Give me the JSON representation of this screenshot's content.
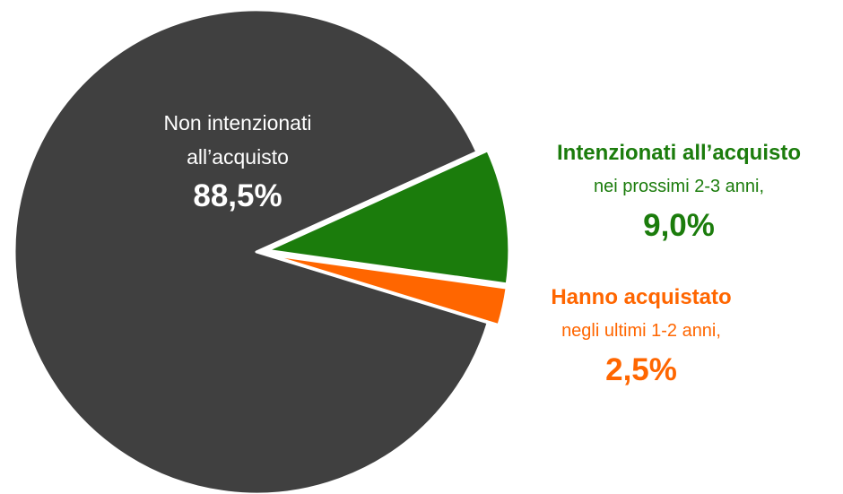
{
  "chart_data": {
    "type": "pie",
    "categories": [
      "Intenzionati all’acquisto",
      "Hanno acquistato",
      "Non intenzionati all’acquisto"
    ],
    "subtitles": [
      "nei prossimi 2-3 anni,",
      "negli ultimi 1-2 anni,",
      null
    ],
    "values": [
      9.0,
      2.5,
      88.5
    ],
    "value_labels": [
      "9,0%",
      "2,5%",
      "88,5%"
    ],
    "colors": [
      "#1b7c0c",
      "#ff6600",
      "#404040"
    ]
  }
}
